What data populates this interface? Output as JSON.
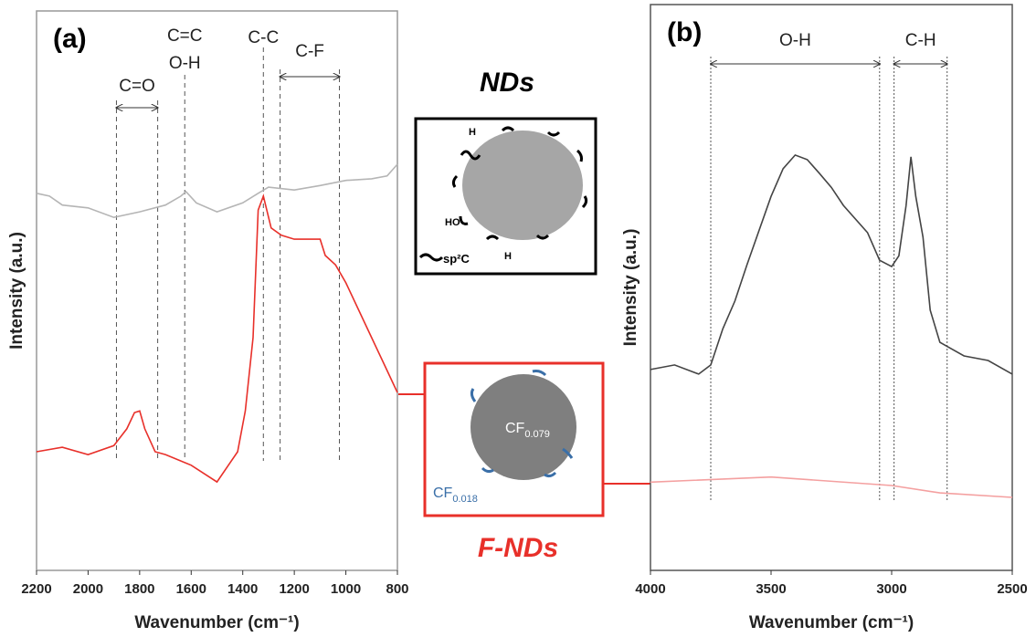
{
  "chart_data": [
    {
      "type": "line",
      "title": "(a)",
      "x_label": "Wavenumber (cm⁻¹)",
      "y_label": "Intensity (a.u.)",
      "xlim": [
        2200,
        800
      ],
      "xticks": [
        2200,
        2000,
        1800,
        1600,
        1400,
        1200,
        1000,
        800
      ],
      "ylim": [
        0,
        100
      ],
      "series": [
        {
          "color": "#b5b5b5",
          "x": [
            2200,
            2150,
            2100,
            2000,
            1900,
            1800,
            1700,
            1640,
            1620,
            1580,
            1500,
            1400,
            1340,
            1300,
            1200,
            1100,
            1000,
            900,
            840,
            800
          ],
          "values": [
            67.4,
            66.9,
            65.3,
            64.8,
            63.1,
            64.1,
            65.3,
            66.9,
            67.7,
            65.7,
            64.1,
            65.7,
            67.4,
            68.5,
            68.0,
            68.8,
            69.7,
            70.0,
            70.5,
            72.6
          ]
        },
        {
          "color": "#e8302a",
          "x": [
            2200,
            2100,
            2000,
            1900,
            1850,
            1820,
            1800,
            1780,
            1740,
            1700,
            1600,
            1500,
            1420,
            1390,
            1360,
            1340,
            1320,
            1290,
            1250,
            1200,
            1100,
            1080,
            1040,
            1000,
            900,
            850,
            800
          ],
          "values": [
            21.2,
            22.0,
            20.7,
            22.3,
            25.3,
            28.2,
            28.5,
            25.3,
            21.2,
            20.7,
            18.8,
            15.8,
            21.2,
            28.5,
            41.6,
            64.4,
            66.9,
            61.2,
            59.9,
            59.2,
            59.2,
            56.3,
            54.6,
            51.4,
            41.6,
            36.7,
            31.8
          ]
        }
      ],
      "annotations": [
        {
          "text": [
            "C=O"
          ],
          "x": [
            1890,
            1730
          ]
        },
        {
          "text": [
            "C=C",
            "O-H"
          ],
          "x": [
            1625
          ]
        },
        {
          "text": [
            "C-C"
          ],
          "x": [
            1320
          ]
        },
        {
          "text": [
            "C-F"
          ],
          "x": [
            1255,
            1025
          ]
        }
      ]
    },
    {
      "type": "line",
      "title": "(b)",
      "x_label": "Wavenumber (cm⁻¹)",
      "y_label": "Intensity (a.u.)",
      "xlim": [
        4000,
        2500
      ],
      "xticks": [
        4000,
        3500,
        3000,
        2500
      ],
      "ylim": [
        0,
        100
      ],
      "series": [
        {
          "color": "#444444",
          "x": [
            4000,
            3900,
            3800,
            3750,
            3700,
            3650,
            3600,
            3500,
            3450,
            3400,
            3350,
            3300,
            3250,
            3200,
            3100,
            3050,
            3000,
            2970,
            2940,
            2920,
            2900,
            2870,
            2840,
            2800,
            2700,
            2600,
            2500
          ],
          "values": [
            35.5,
            36.3,
            34.7,
            36.3,
            42.7,
            47.6,
            54.0,
            66.1,
            71.0,
            73.4,
            72.6,
            70.2,
            67.7,
            64.5,
            59.7,
            54.8,
            53.7,
            55.6,
            64.5,
            73.1,
            66.1,
            58.9,
            46.0,
            40.3,
            37.9,
            37.1,
            34.7
          ]
        },
        {
          "color": "#f4a0a0",
          "x": [
            4000,
            3500,
            3000,
            2800,
            2500
          ],
          "values": [
            15.6,
            16.5,
            15.0,
            13.7,
            12.9
          ]
        }
      ],
      "annotations": [
        {
          "text": [
            "O-H"
          ],
          "x": [
            3750,
            3050
          ]
        },
        {
          "text": [
            "C-H"
          ],
          "x": [
            2990,
            2770
          ]
        }
      ]
    }
  ],
  "diagram": {
    "nds": {
      "title": "NDs",
      "labels": [
        "H",
        "HO",
        "H",
        "sp²C"
      ]
    },
    "fnds": {
      "title": "F-NDs",
      "core": {
        "base": "CF",
        "sub": "0.079"
      },
      "shell": {
        "base": "CF",
        "sub": "0.018"
      }
    }
  }
}
